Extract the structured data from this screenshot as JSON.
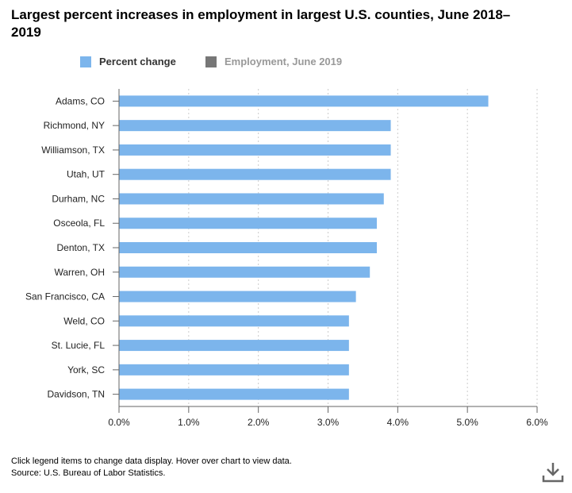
{
  "title": "Largest percent increases in employment in largest U.S. counties, June 2018–2019",
  "legend": [
    {
      "label": "Percent change",
      "color": "#7cb5ec"
    },
    {
      "label": "Employment, June 2019",
      "color": "#777777"
    }
  ],
  "chart_data": {
    "type": "bar",
    "orientation": "horizontal",
    "categories": [
      "Adams, CO",
      "Richmond, NY",
      "Williamson, TX",
      "Utah, UT",
      "Durham, NC",
      "Osceola, FL",
      "Denton, TX",
      "Warren, OH",
      "San Francisco, CA",
      "Weld, CO",
      "St. Lucie, FL",
      "York, SC",
      "Davidson, TN"
    ],
    "series": [
      {
        "name": "Percent change",
        "values": [
          5.3,
          3.9,
          3.9,
          3.9,
          3.8,
          3.7,
          3.7,
          3.6,
          3.4,
          3.3,
          3.3,
          3.3,
          3.3
        ]
      }
    ],
    "xlim": [
      0,
      6
    ],
    "ticks": [
      0,
      1,
      2,
      3,
      4,
      5,
      6
    ],
    "tick_labels": [
      "0.0%",
      "1.0%",
      "2.0%",
      "3.0%",
      "4.0%",
      "5.0%",
      "6.0%"
    ],
    "xlabel": "",
    "ylabel": "",
    "grid": "vertical dotted",
    "bar_color": "#7cb5ec"
  },
  "footer": {
    "note": "Click legend items to change data display. Hover over chart to view data.",
    "source": "Source: U.S. Bureau of Labor Statistics."
  },
  "icons": {
    "download": "download-icon"
  }
}
